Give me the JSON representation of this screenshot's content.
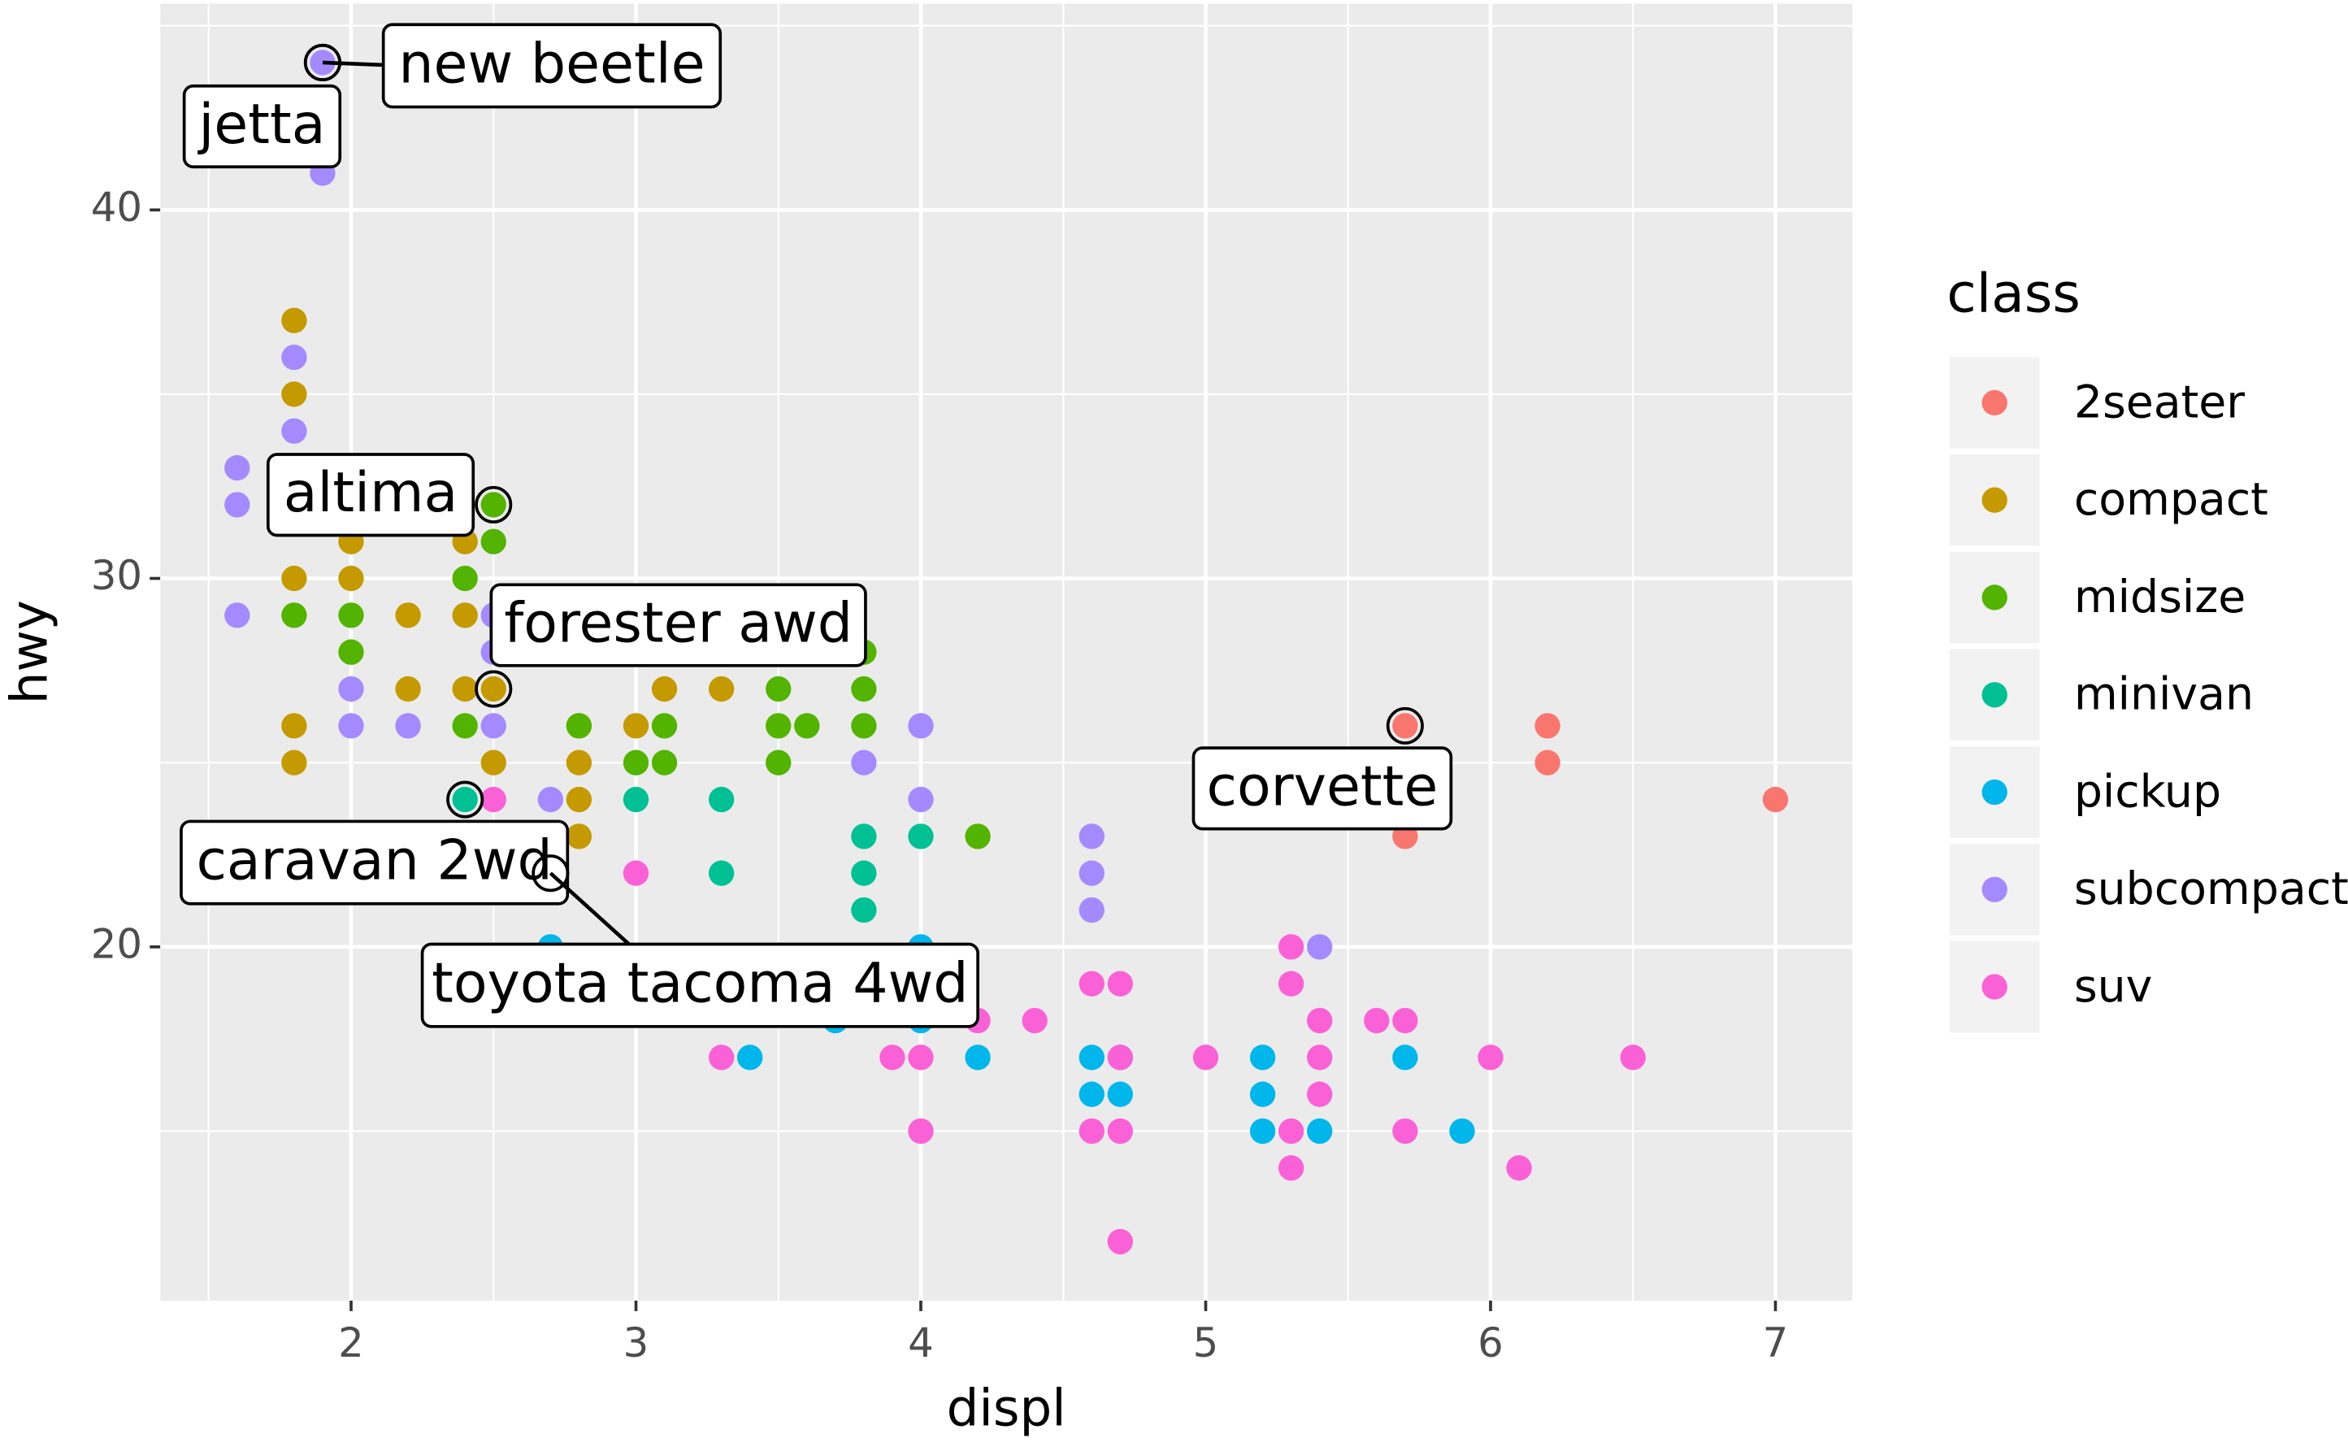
{
  "chart_data": {
    "type": "scatter",
    "x_label": "displ",
    "y_label": "hwy",
    "legend_title": "class",
    "xlim": [
      1.33,
      7.27
    ],
    "ylim": [
      10.4,
      45.6
    ],
    "xticks": [
      2,
      3,
      4,
      5,
      6,
      7
    ],
    "yticks": [
      20,
      30,
      40
    ],
    "x_minor_grid": [
      1.5,
      2.5,
      3.5,
      4.5,
      5.5,
      6.5
    ],
    "y_minor_grid": [
      15,
      25,
      35,
      45
    ],
    "grid": true,
    "legend": "right",
    "series": [
      {
        "name": "2seater",
        "color": "#F8766D",
        "x": [
          5.7,
          5.7,
          6.2,
          6.2,
          7
        ],
        "y": [
          26,
          23,
          26,
          25,
          24
        ]
      },
      {
        "name": "compact",
        "color": "#C49A00",
        "x": [
          1.8,
          1.8,
          1.8,
          1.8,
          1.8,
          2,
          2,
          2.2,
          2.2,
          2.4,
          2.4,
          2.4,
          2.5,
          2.5,
          2.8,
          2.8,
          2.8,
          2.8,
          3,
          3.1,
          3.3
        ],
        "y": [
          37,
          35,
          30,
          26,
          25,
          31,
          30,
          29,
          27,
          31,
          29,
          27,
          27,
          25,
          26,
          25,
          24,
          23,
          26,
          27,
          27
        ]
      },
      {
        "name": "midsize",
        "color": "#53B400",
        "x": [
          1.8,
          2,
          2,
          2.4,
          2.4,
          2.5,
          2.5,
          2.8,
          3,
          3.1,
          3.1,
          3.5,
          3.5,
          3.5,
          3.6,
          3.8,
          3.8,
          3.8,
          4.2
        ],
        "y": [
          29,
          29,
          28,
          30,
          26,
          32,
          31,
          26,
          25,
          26,
          25,
          27,
          26,
          25,
          26,
          28,
          27,
          26,
          23
        ]
      },
      {
        "name": "minivan",
        "color": "#00C094",
        "x": [
          2.4,
          3,
          3.3,
          3.3,
          3.8,
          3.8,
          3.8,
          4
        ],
        "y": [
          24,
          24,
          24,
          22,
          23,
          22,
          21,
          23
        ]
      },
      {
        "name": "pickup",
        "color": "#00B6EB",
        "x": [
          2.7,
          3.4,
          3.7,
          4,
          4,
          4.2,
          4.6,
          4.6,
          4.7,
          4.7,
          5.2,
          5.2,
          5.2,
          5.4,
          5.7,
          5.9
        ],
        "y": [
          20,
          17,
          18,
          20,
          18,
          17,
          17,
          16,
          17,
          16,
          17,
          16,
          15,
          15,
          17,
          15
        ]
      },
      {
        "name": "subcompact",
        "color": "#A58AFF",
        "x": [
          1.6,
          1.6,
          1.6,
          1.9,
          1.9,
          1.8,
          1.8,
          2,
          2,
          2.2,
          2.5,
          2.5,
          2.5,
          2.7,
          3.8,
          4,
          4,
          4.6,
          4.6,
          4.6,
          5.4
        ],
        "y": [
          33,
          32,
          29,
          44,
          41,
          36,
          34,
          27,
          26,
          26,
          29,
          28,
          26,
          24,
          25,
          26,
          24,
          23,
          22,
          21,
          20
        ]
      },
      {
        "name": "suv",
        "color": "#FB61D7",
        "x": [
          2.5,
          3,
          3.3,
          3.9,
          4,
          4,
          4.2,
          4.4,
          4.6,
          4.6,
          4.7,
          4.7,
          4.7,
          4.7,
          5,
          5.3,
          5.3,
          5.3,
          5.3,
          5.4,
          5.4,
          5.4,
          5.6,
          5.7,
          5.7,
          6,
          6.1,
          6.5
        ],
        "y": [
          24,
          22,
          17,
          17,
          17,
          15,
          18,
          18,
          19,
          15,
          19,
          17,
          15,
          12,
          17,
          20,
          19,
          15,
          14,
          18,
          17,
          16,
          18,
          18,
          15,
          17,
          14,
          17
        ]
      }
    ],
    "annotations": [
      {
        "text": "new beetle",
        "x": 1.9,
        "y": 44
      },
      {
        "text": "jetta",
        "x": 1.9,
        "y": 44
      },
      {
        "text": "altima",
        "x": 2.5,
        "y": 32
      },
      {
        "text": "forester awd",
        "x": 2.5,
        "y": 27
      },
      {
        "text": "caravan 2wd",
        "x": 2.4,
        "y": 24
      },
      {
        "text": "toyota tacoma 4wd",
        "x": 2.7,
        "y": 22
      },
      {
        "text": "corvette",
        "x": 5.7,
        "y": 26
      }
    ]
  }
}
